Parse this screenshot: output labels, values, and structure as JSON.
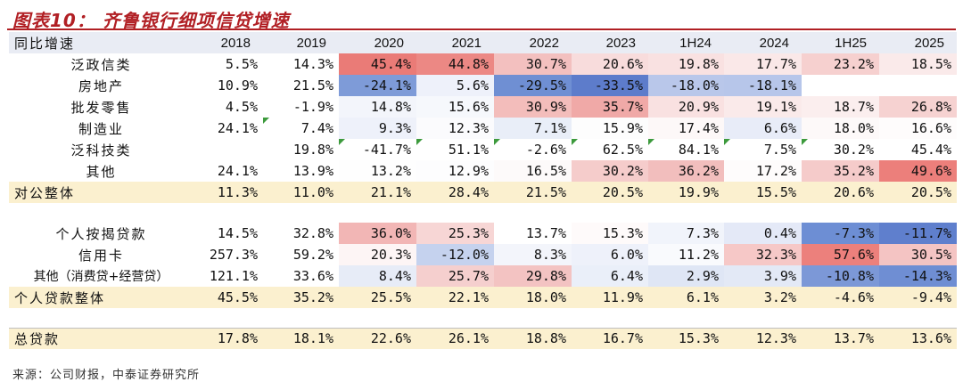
{
  "title": "图表10：  齐鲁银行细项信贷增速",
  "source": "来源：公司财报，中泰证券研究所",
  "chart_data": {
    "type": "table",
    "title": "图表10：  齐鲁银行细项信贷增速",
    "row_header": "同比增速",
    "columns": [
      "2018",
      "2019",
      "2020",
      "2021",
      "2022",
      "2023",
      "1H24",
      "2024",
      "1H25",
      "2025"
    ],
    "rows": [
      {
        "label": "泛政信类",
        "kind": "item",
        "values": [
          "5.5%",
          "14.3%",
          "45.4%",
          "44.8%",
          "30.7%",
          "20.6%",
          "19.8%",
          "17.7%",
          "23.2%",
          "18.5%"
        ],
        "flags": [
          false,
          false,
          false,
          false,
          false,
          false,
          false,
          false,
          false,
          false
        ]
      },
      {
        "label": "房地产",
        "kind": "item",
        "values": [
          "10.9%",
          "21.5%",
          "-24.1%",
          "5.6%",
          "-29.5%",
          "-33.5%",
          "-18.0%",
          "-18.1%",
          "",
          ""
        ],
        "flags": [
          false,
          false,
          false,
          false,
          false,
          false,
          false,
          false,
          false,
          false
        ]
      },
      {
        "label": "批发零售",
        "kind": "item",
        "values": [
          "4.5%",
          "-1.9%",
          "14.8%",
          "15.6%",
          "30.9%",
          "35.7%",
          "20.9%",
          "19.1%",
          "18.7%",
          "26.8%"
        ],
        "flags": [
          false,
          false,
          false,
          false,
          false,
          false,
          false,
          false,
          false,
          false
        ]
      },
      {
        "label": "制造业",
        "kind": "item",
        "values": [
          "24.1%",
          "7.4%",
          "9.3%",
          "12.3%",
          "7.1%",
          "15.9%",
          "17.4%",
          "6.6%",
          "18.0%",
          "16.6%"
        ],
        "flags": [
          false,
          true,
          false,
          false,
          false,
          false,
          false,
          false,
          false,
          false
        ]
      },
      {
        "label": "泛科技类",
        "kind": "item",
        "values": [
          "",
          "19.8%",
          "-41.7%",
          "51.1%",
          "-2.6%",
          "62.5%",
          "84.1%",
          "7.5%",
          "30.2%",
          "45.4%"
        ],
        "flags": [
          false,
          false,
          true,
          true,
          true,
          true,
          true,
          true,
          true,
          false
        ]
      },
      {
        "label": "其他",
        "kind": "item",
        "values": [
          "24.1%",
          "13.9%",
          "13.2%",
          "12.9%",
          "16.5%",
          "30.2%",
          "36.2%",
          "17.2%",
          "35.2%",
          "49.6%"
        ],
        "flags": [
          false,
          false,
          false,
          false,
          false,
          false,
          false,
          false,
          false,
          false
        ]
      },
      {
        "label": "对公整体",
        "kind": "band",
        "values": [
          "11.3%",
          "11.0%",
          "21.1%",
          "28.4%",
          "21.5%",
          "20.5%",
          "19.9%",
          "15.5%",
          "20.6%",
          "20.5%"
        ],
        "flags": [
          false,
          false,
          false,
          false,
          false,
          false,
          false,
          false,
          false,
          false
        ]
      },
      {
        "label": "",
        "kind": "gap",
        "values": [
          "",
          "",
          "",
          "",
          "",
          "",
          "",
          "",
          "",
          ""
        ],
        "flags": [
          false,
          false,
          false,
          false,
          false,
          false,
          false,
          false,
          false,
          false
        ]
      },
      {
        "label": "个人按揭贷款",
        "kind": "item",
        "values": [
          "14.5%",
          "32.8%",
          "36.0%",
          "25.3%",
          "13.7%",
          "15.3%",
          "7.3%",
          "0.4%",
          "-7.3%",
          "-11.7%"
        ],
        "flags": [
          false,
          false,
          false,
          false,
          false,
          false,
          false,
          false,
          false,
          false
        ]
      },
      {
        "label": "信用卡",
        "kind": "item",
        "values": [
          "257.3%",
          "59.2%",
          "20.3%",
          "-12.0%",
          "8.3%",
          "6.0%",
          "11.2%",
          "32.3%",
          "57.6%",
          "30.5%"
        ],
        "flags": [
          false,
          false,
          false,
          false,
          false,
          false,
          false,
          false,
          false,
          false
        ]
      },
      {
        "label": "其他（消费贷+经营贷）",
        "kind": "item",
        "values": [
          "121.1%",
          "33.6%",
          "8.4%",
          "25.7%",
          "29.8%",
          "6.4%",
          "2.9%",
          "3.9%",
          "-10.8%",
          "-14.3%"
        ],
        "flags": [
          false,
          false,
          false,
          false,
          false,
          false,
          false,
          false,
          false,
          false
        ]
      },
      {
        "label": "个人贷款整体",
        "kind": "band",
        "values": [
          "45.5%",
          "35.2%",
          "25.5%",
          "22.1%",
          "18.0%",
          "11.9%",
          "6.1%",
          "3.2%",
          "-4.6%",
          "-9.4%"
        ],
        "flags": [
          false,
          false,
          false,
          false,
          false,
          false,
          false,
          false,
          false,
          false
        ]
      },
      {
        "label": "",
        "kind": "gap",
        "values": [
          "",
          "",
          "",
          "",
          "",
          "",
          "",
          "",
          "",
          ""
        ],
        "flags": [
          false,
          false,
          false,
          false,
          false,
          false,
          false,
          false,
          false,
          false
        ]
      },
      {
        "label": "总贷款",
        "kind": "band",
        "values": [
          "17.8%",
          "18.1%",
          "22.6%",
          "26.1%",
          "18.8%",
          "16.7%",
          "15.3%",
          "12.3%",
          "13.7%",
          "13.6%"
        ],
        "flags": [
          false,
          false,
          false,
          false,
          false,
          false,
          false,
          false,
          false,
          false
        ]
      }
    ],
    "cell_fill": {
      "泛政信类": [
        "",
        "",
        "#ea7b77",
        "#ec8884",
        "#f3c0bf",
        "#f8dcdc",
        "#f9e1e1",
        "#fae8e8",
        "#f6d0cf",
        "#faeaea"
      ],
      "房地产": [
        "",
        "",
        "#7e9bd8",
        "#eef1fa",
        "#6f8fd3",
        "#5d7ccb",
        "#b9c7ea",
        "#b7c6ea",
        "",
        ""
      ],
      "批发零售": [
        "",
        "",
        "#f3f5fb",
        "#f6f8fc",
        "#f3bdbb",
        "#f0a9a7",
        "#f9e1e1",
        "#faeaea",
        "#fbeeee",
        "#f6d2d1"
      ],
      "制造业": [
        "",
        "",
        "#eef1fa",
        "#fbfbfd",
        "#e9eef8",
        "#fdfdfd",
        "#fdf8f8",
        "#e8ecf8",
        "#fdf9f9",
        "#fefcfc"
      ],
      "泛科技类": [
        "",
        "",
        "#ffffff",
        "#ffffff",
        "#ffffff",
        "#ffffff",
        "#ffffff",
        "#ffffff",
        "#ffffff",
        "#ffffff"
      ],
      "其他": [
        "",
        "",
        "#fefefe",
        "#fdfdfe",
        "#fdfafa",
        "#f5cccb",
        "#f2bebd",
        "#fefcfc",
        "#f5cbca",
        "#ec7f7b"
      ],
      "个人按揭贷款": [
        "",
        "",
        "#f2b6b5",
        "#f7d6d5",
        "#ffffff",
        "#fefafa",
        "#f1f4fb",
        "#e4e9f7",
        "#6d8ed4",
        "#5f7fcd"
      ],
      "信用卡": [
        "",
        "",
        "#fdf5f5",
        "#c5d2ee",
        "#f3f5fb",
        "#eef1fa",
        "#f9fafd",
        "#f6c8c7",
        "#ec807c",
        "#f4c4c3"
      ],
      "其他（消费贷+经营贷）": [
        "",
        "",
        "#e7ecf7",
        "#f5cfce",
        "#f3c3c2",
        "#eaeff9",
        "#dfe6f5",
        "#e3e9f6",
        "#7c98d7",
        "#6f8ed3"
      ]
    }
  }
}
